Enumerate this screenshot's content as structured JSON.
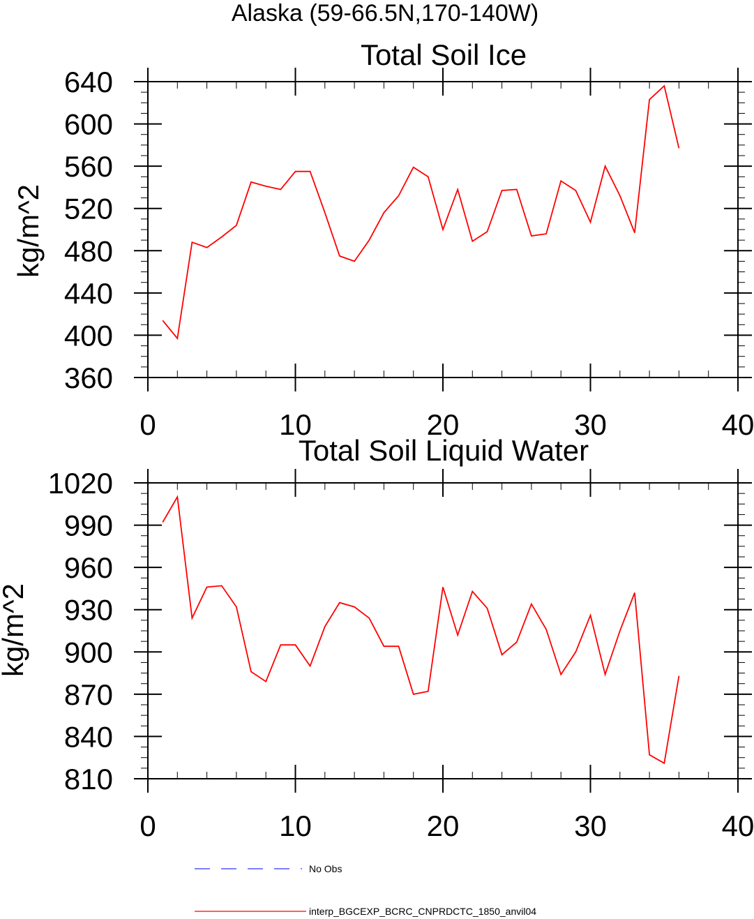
{
  "figure_title": "Alaska (59-66.5N,170-140W)",
  "chart_data": [
    {
      "type": "line",
      "title": "Total Soil Ice",
      "ylabel": "kg/m^2",
      "xlabel": "",
      "xlim": [
        0,
        40
      ],
      "ylim": [
        360,
        640
      ],
      "xticks": [
        0,
        10,
        20,
        30,
        40
      ],
      "yticks": [
        360,
        400,
        440,
        480,
        520,
        560,
        600,
        640
      ],
      "series": [
        {
          "name": "interp_BGCEXP_BCRC_CNPRDCTC_1850_anvil04",
          "color": "#ff0000",
          "x": [
            1,
            2,
            3,
            4,
            5,
            6,
            7,
            8,
            9,
            10,
            11,
            12,
            13,
            14,
            15,
            16,
            17,
            18,
            19,
            20,
            21,
            22,
            23,
            24,
            25,
            26,
            27,
            28,
            29,
            30,
            31,
            32,
            33,
            34,
            35,
            36
          ],
          "values": [
            414,
            397,
            488,
            483,
            493,
            504,
            545,
            541,
            538,
            555,
            555,
            516,
            475,
            470,
            490,
            516,
            532,
            559,
            550,
            500,
            538,
            489,
            498,
            537,
            538,
            494,
            496,
            546,
            537,
            507,
            560,
            532,
            497,
            623,
            636,
            577
          ]
        }
      ]
    },
    {
      "type": "line",
      "title": "Total Soil Liquid Water",
      "ylabel": "kg/m^2",
      "xlabel": "",
      "xlim": [
        0,
        40
      ],
      "ylim": [
        810,
        1020
      ],
      "xticks": [
        0,
        10,
        20,
        30,
        40
      ],
      "yticks": [
        810,
        840,
        870,
        900,
        930,
        960,
        990,
        1020
      ],
      "series": [
        {
          "name": "interp_BGCEXP_BCRC_CNPRDCTC_1850_anvil04",
          "color": "#ff0000",
          "x": [
            1,
            2,
            3,
            4,
            5,
            6,
            7,
            8,
            9,
            10,
            11,
            12,
            13,
            14,
            15,
            16,
            17,
            18,
            19,
            20,
            21,
            22,
            23,
            24,
            25,
            26,
            27,
            28,
            29,
            30,
            31,
            32,
            33,
            34,
            35,
            36
          ],
          "values": [
            992,
            1010,
            924,
            946,
            947,
            932,
            886,
            879,
            905,
            905,
            890,
            918,
            935,
            932,
            924,
            904,
            904,
            870,
            872,
            946,
            912,
            943,
            931,
            898,
            907,
            934,
            916,
            884,
            900,
            926,
            884,
            915,
            942,
            827,
            821,
            883
          ]
        }
      ]
    }
  ],
  "legend": [
    {
      "label": "No Obs",
      "color": "#3333ff",
      "style": "dashed"
    },
    {
      "label": "interp_BGCEXP_BCRC_CNPRDCTC_1850_anvil04",
      "color": "#ff0000",
      "style": "solid"
    }
  ]
}
